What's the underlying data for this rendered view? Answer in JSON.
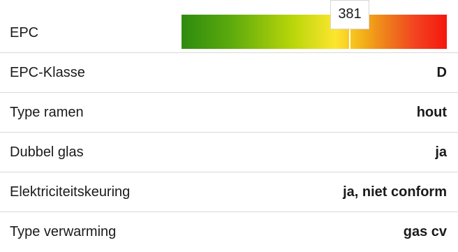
{
  "rows": [
    {
      "label": "EPC",
      "value": ""
    },
    {
      "label": "EPC-Klasse",
      "value": "D"
    },
    {
      "label": "Type ramen",
      "value": "hout"
    },
    {
      "label": "Dubbel glas",
      "value": "ja"
    },
    {
      "label": "Elektriciteitskeuring",
      "value": "ja, niet conform"
    },
    {
      "label": "Type verwarming",
      "value": "gas cv"
    }
  ],
  "epc": {
    "score": "381",
    "score_value": 381,
    "scale_max": 600,
    "gradient_colors": [
      "#2e8b0e",
      "#b9d60a",
      "#fde62e",
      "#ee7a1b",
      "#f5170f"
    ]
  }
}
